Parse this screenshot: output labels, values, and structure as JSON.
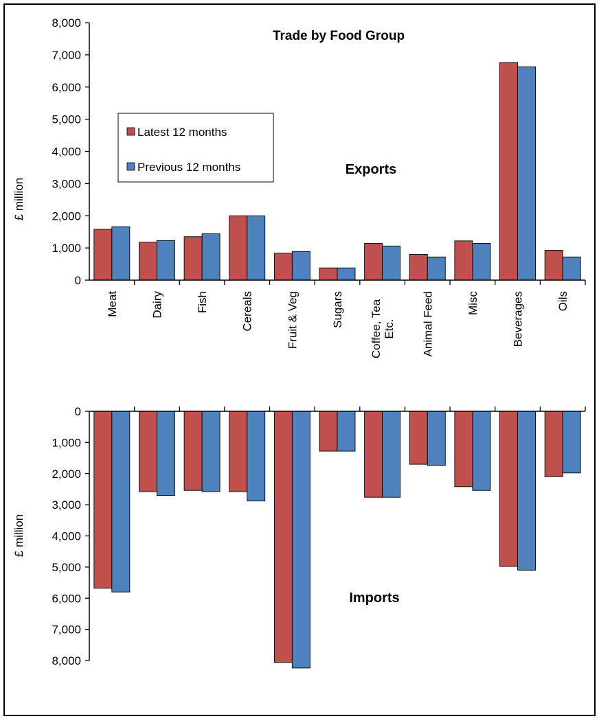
{
  "chart_data": {
    "type": "bar",
    "title": "Trade by Food Group",
    "categories": [
      "Meat",
      "Dairy",
      "Fish",
      "Cereals",
      "Fruit & Veg",
      "Sugars",
      "Coffee, Tea Etc.",
      "Animal Feed",
      "Misc",
      "Beverages",
      "Oils"
    ],
    "category_lines": [
      [
        "Meat"
      ],
      [
        "Dairy"
      ],
      [
        "Fish"
      ],
      [
        "Cereals"
      ],
      [
        "Fruit & Veg"
      ],
      [
        "Sugars"
      ],
      [
        "Coffee, Tea",
        "Etc."
      ],
      [
        "Animal Feed"
      ],
      [
        "Misc"
      ],
      [
        "Beverages"
      ],
      [
        "Oils"
      ]
    ],
    "legend": {
      "placement": "top-left",
      "entries": [
        "Latest 12 months",
        "Previous 12 months"
      ]
    },
    "colors": {
      "latest": "#c0504d",
      "previous": "#4f81bd",
      "axis": "#000000"
    },
    "panels": [
      {
        "label": "Exports",
        "ylabel": "£ million",
        "ylim": [
          0,
          8000
        ],
        "yticks": [
          "0",
          "1,000",
          "2,000",
          "3,000",
          "4,000",
          "5,000",
          "6,000",
          "7,000",
          "8,000"
        ],
        "inverted": false,
        "series": [
          {
            "name": "Latest 12 months",
            "values": [
              1580,
              1180,
              1350,
              2000,
              840,
              380,
              1140,
              800,
              1220,
              6760,
              930
            ]
          },
          {
            "name": "Previous 12 months",
            "values": [
              1660,
              1230,
              1440,
              2000,
              890,
              380,
              1060,
              720,
              1140,
              6630,
              720
            ]
          }
        ]
      },
      {
        "label": "Imports",
        "ylabel": "£ million",
        "ylim": [
          0,
          8000
        ],
        "yticks": [
          "0",
          "1,000",
          "2,000",
          "3,000",
          "4,000",
          "5,000",
          "6,000",
          "7,000",
          "8,000"
        ],
        "inverted": true,
        "series": [
          {
            "name": "Latest 12 months",
            "values": [
              5680,
              2580,
              2540,
              2580,
              8060,
              1280,
              2760,
              1700,
              2420,
              4980,
              2100
            ]
          },
          {
            "name": "Previous 12 months",
            "values": [
              5800,
              2700,
              2580,
              2880,
              8240,
              1280,
              2760,
              1740,
              2540,
              5100,
              1980
            ]
          }
        ]
      }
    ]
  }
}
